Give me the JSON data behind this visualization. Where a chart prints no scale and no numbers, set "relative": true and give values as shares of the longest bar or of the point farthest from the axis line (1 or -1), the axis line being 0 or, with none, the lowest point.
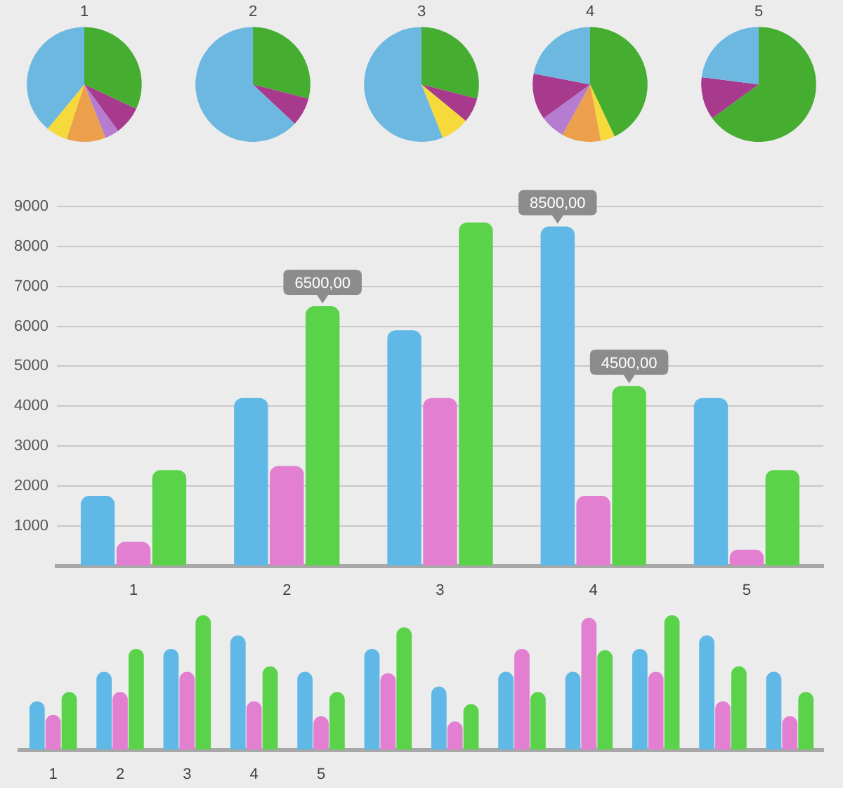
{
  "chart_data": [
    {
      "type": "pie",
      "title": "1",
      "categories": [
        null,
        null,
        null,
        null,
        null,
        null
      ],
      "values": [
        32,
        8,
        4,
        11,
        6,
        39
      ],
      "colors": [
        "#45ad30",
        "#a83a8e",
        "#b57ccf",
        "#eda04b",
        "#f6d93a",
        "#6cb8e0"
      ]
    },
    {
      "type": "pie",
      "title": "2",
      "categories": [
        null,
        null,
        null
      ],
      "values": [
        29,
        8,
        63
      ],
      "colors": [
        "#45ad30",
        "#a83a8e",
        "#6cb8e0"
      ]
    },
    {
      "type": "pie",
      "title": "3",
      "categories": [
        null,
        null,
        null,
        null
      ],
      "values": [
        29,
        7,
        8,
        56
      ],
      "colors": [
        "#45ad30",
        "#a83a8e",
        "#f6d93a",
        "#6cb8e0"
      ]
    },
    {
      "type": "pie",
      "title": "4",
      "categories": [
        null,
        null,
        null,
        null,
        null,
        null
      ],
      "values": [
        43,
        4,
        11,
        7,
        13,
        22
      ],
      "colors": [
        "#45ad30",
        "#f6d93a",
        "#eda04b",
        "#b57ccf",
        "#a83a8e",
        "#6cb8e0"
      ]
    },
    {
      "type": "pie",
      "title": "5",
      "categories": [
        null,
        null,
        null
      ],
      "values": [
        65,
        12,
        23
      ],
      "colors": [
        "#45ad30",
        "#a83a8e",
        "#6cb8e0"
      ]
    },
    {
      "type": "bar",
      "categories": [
        "1",
        "2",
        "3",
        "4",
        "5"
      ],
      "ylim": [
        0,
        9000
      ],
      "yticks": [
        1000,
        2000,
        3000,
        4000,
        5000,
        6000,
        7000,
        8000,
        9000
      ],
      "grid": "y",
      "series": [
        {
          "color": "#5fb8e6",
          "values": [
            1750,
            4200,
            5900,
            8500,
            4200
          ],
          "value_labels": [
            null,
            null,
            null,
            "8500,00",
            null
          ]
        },
        {
          "color": "#e27fd0",
          "values": [
            600,
            2500,
            4200,
            1750,
            400
          ]
        },
        {
          "color": "#5ad24a",
          "values": [
            2400,
            6500,
            8600,
            4500,
            2400
          ],
          "value_labels": [
            null,
            "6500,00",
            null,
            "4500,00",
            null
          ]
        }
      ]
    },
    {
      "type": "bar",
      "relative": true,
      "categories": [
        "1",
        "2",
        "3",
        "4",
        "5",
        null,
        null,
        null,
        null,
        null,
        null,
        null
      ],
      "series": [
        {
          "color": "#5fb8e6",
          "values": [
            0.36,
            0.58,
            0.75,
            0.85,
            0.58,
            0.75,
            0.47,
            0.58,
            0.58,
            0.75,
            0.85,
            0.58
          ]
        },
        {
          "color": "#e27fd0",
          "values": [
            0.26,
            0.43,
            0.58,
            0.36,
            0.25,
            0.57,
            0.21,
            0.75,
            0.98,
            0.58,
            0.36,
            0.25
          ]
        },
        {
          "color": "#5ad24a",
          "values": [
            0.43,
            0.75,
            1,
            0.62,
            0.43,
            0.91,
            0.34,
            0.43,
            0.74,
            1,
            0.62,
            0.43
          ]
        }
      ]
    }
  ]
}
